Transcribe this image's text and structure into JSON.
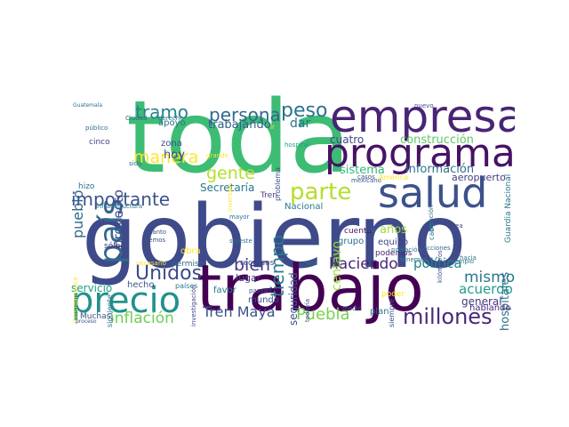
{
  "words": [
    {
      "id": "gobierno",
      "text": "gobierno",
      "color": "#3e4a89"
    },
    {
      "id": "toda",
      "text": "toda",
      "color": "#3dbc74"
    },
    {
      "id": "trabajo",
      "text": "trabajo",
      "color": "#440154"
    },
    {
      "id": "empresa",
      "text": "empresa",
      "color": "#482475"
    },
    {
      "id": "programa",
      "text": "programa",
      "color": "#471365"
    },
    {
      "id": "salud",
      "text": "salud",
      "color": "#3b528b"
    },
    {
      "id": "precio",
      "text": "precio",
      "color": "#21918c"
    },
    {
      "id": "parte",
      "text": "parte",
      "color": "#b5de2b"
    },
    {
      "id": "pais",
      "text": "país",
      "color": "#31688e"
    },
    {
      "id": "millones",
      "text": "millones",
      "color": "#482878"
    },
    {
      "id": "persona",
      "text": "persona",
      "color": "#31688e"
    },
    {
      "id": "peso",
      "text": "peso",
      "color": "#2c728e"
    },
    {
      "id": "tramo",
      "text": "tramo",
      "color": "#26828e"
    },
    {
      "id": "importante",
      "text": "importante",
      "color": "#3b528b"
    },
    {
      "id": "unidos",
      "text": "Unidos",
      "color": "#3e4989"
    },
    {
      "id": "manera",
      "text": "manera",
      "color": "#fde725"
    },
    {
      "id": "gente",
      "text": "gente",
      "color": "#b5de2b"
    },
    {
      "id": "puebla",
      "text": "Puebla",
      "color": "#7ad151"
    },
    {
      "id": "tren-maya",
      "text": "Tren Maya",
      "color": "#3b528b"
    },
    {
      "id": "inflacion",
      "text": "inflación",
      "color": "#6ece58"
    },
    {
      "id": "bien",
      "text": "bien",
      "color": "#443a83"
    },
    {
      "id": "haciendo",
      "text": "haciendo",
      "color": "#482878"
    },
    {
      "id": "mismo",
      "text": "mismo",
      "color": "#2a788e"
    },
    {
      "id": "acuerdo",
      "text": "acuerdo",
      "color": "#1f9e89"
    },
    {
      "id": "politica",
      "text": "política",
      "color": "#25848e"
    },
    {
      "id": "tiempo",
      "text": "tiempo",
      "color": "#2a788e"
    },
    {
      "id": "pueblo",
      "text": "pueblo",
      "color": "#31688e"
    },
    {
      "id": "proyecto",
      "text": "proyecto",
      "color": "#3e4a89"
    },
    {
      "id": "trabajando",
      "text": "trabajando",
      "color": "#355f8d"
    },
    {
      "id": "dar",
      "text": "dar",
      "color": "#2c728e"
    },
    {
      "id": "cuatro",
      "text": "cuatro",
      "color": "#404688"
    },
    {
      "id": "construccion",
      "text": "construcción",
      "color": "#5ec962"
    },
    {
      "id": "sistema",
      "text": "sistema",
      "color": "#35b779"
    },
    {
      "id": "informacion",
      "text": "información",
      "color": "#2d708e"
    },
    {
      "id": "aeropuerto",
      "text": "aeropuerto",
      "color": "#433e85"
    },
    {
      "id": "centavo",
      "text": "centavo",
      "color": "#a0da39"
    },
    {
      "id": "hoy",
      "text": "hoy",
      "color": "#3b528b"
    },
    {
      "id": "secretaria",
      "text": "Secretaría",
      "color": "#2a788e"
    },
    {
      "id": "servicio",
      "text": "servicio",
      "color": "#1fa188"
    },
    {
      "id": "hospitales",
      "text": "hospitales",
      "color": "#2c728e"
    },
    {
      "id": "general",
      "text": "general",
      "color": "#443983"
    },
    {
      "id": "seguridad",
      "text": "seguridad",
      "color": "#3b528b"
    },
    {
      "id": "anos",
      "text": "años",
      "color": "#9fda3a"
    },
    {
      "id": "nacional",
      "text": "Nacional",
      "color": "#2a788e"
    },
    {
      "id": "guardia-nacional",
      "text": "Guardia Nacional",
      "color": "#2a788e"
    },
    {
      "id": "zona",
      "text": "zona",
      "color": "#3b528b"
    },
    {
      "id": "apoyo",
      "text": "apoyo",
      "color": "#2c728e"
    },
    {
      "id": "lugar",
      "text": "lugar",
      "color": "#433e85"
    },
    {
      "id": "grupo",
      "text": "grupo",
      "color": "#2c728e"
    },
    {
      "id": "equipo",
      "text": "equipo",
      "color": "#404688"
    },
    {
      "id": "podemos",
      "text": "podemos",
      "color": "#482475"
    },
    {
      "id": "cuenta",
      "text": "cuenta",
      "color": "#471365"
    },
    {
      "id": "recursos",
      "text": "recursos",
      "color": "#3e4a89"
    },
    {
      "id": "permiso",
      "text": "permiso",
      "color": "#31688e"
    },
    {
      "id": "obra",
      "text": "obra",
      "color": "#fde725"
    },
    {
      "id": "hecho",
      "text": "hecho",
      "color": "#3b528b"
    },
    {
      "id": "favor",
      "text": "favor",
      "color": "#2a788e"
    },
    {
      "id": "mundo",
      "text": "mundo",
      "color": "#3b528b"
    },
    {
      "id": "plan",
      "text": "plan",
      "color": "#2a788e"
    },
    {
      "id": "poder",
      "text": "poder",
      "color": "#fde725"
    },
    {
      "id": "hablando",
      "text": "hablando",
      "color": "#482878"
    },
    {
      "id": "hizo",
      "text": "hizo",
      "color": "#2c728e"
    },
    {
      "id": "tren",
      "text": "Tren",
      "color": "#443a83"
    },
    {
      "id": "muchas",
      "text": "Muchas",
      "color": "#3b528b"
    },
    {
      "id": "siguiente",
      "text": "siguiente",
      "color": "#2c728e"
    },
    {
      "id": "solo",
      "text": "sólo",
      "color": "#482878"
    },
    {
      "id": "cinco",
      "text": "cinco",
      "color": "#433e85"
    },
    {
      "id": "publico",
      "text": "público",
      "color": "#2c728e"
    },
    {
      "id": "ciudad",
      "text": "Ciudad",
      "color": "#31688e"
    },
    {
      "id": "derecho",
      "text": "derecho",
      "color": "#2c728e"
    },
    {
      "id": "sido",
      "text": "sido",
      "color": "#2c728e"
    },
    {
      "id": "grande",
      "text": "grande",
      "color": "#fde725"
    },
    {
      "id": "inversion",
      "text": "inversión",
      "color": "#fde725"
    },
    {
      "id": "problema",
      "text": "problema",
      "color": "#3b528b"
    },
    {
      "id": "hospital",
      "text": "hospital",
      "color": "#1fa188"
    },
    {
      "id": "mexicano",
      "text": "mexicano",
      "color": "#3b528b"
    },
    {
      "id": "casos",
      "text": "casos",
      "color": "#3b528b"
    },
    {
      "id": "america",
      "text": "América",
      "color": "#fde725"
    },
    {
      "id": "atencion",
      "text": "atención",
      "color": "#2c728e"
    },
    {
      "id": "ejemplo",
      "text": "ejemplo",
      "color": "#2a788e"
    },
    {
      "id": "area",
      "text": "área",
      "color": "#404688"
    },
    {
      "id": "acciones",
      "text": "acciones",
      "color": "#31688e"
    },
    {
      "id": "kilometros",
      "text": "kilómetros",
      "color": "#3b528b"
    },
    {
      "id": "poblacion",
      "text": "población",
      "color": "#2a788e"
    },
    {
      "id": "tenemos",
      "text": "tenemos",
      "color": "#2a788e"
    },
    {
      "id": "cabo",
      "text": "cabo",
      "color": "#2c728e"
    },
    {
      "id": "vez",
      "text": "vez",
      "color": "#2c728e"
    },
    {
      "id": "hacia",
      "text": "hacia",
      "color": "#2a788e"
    },
    {
      "id": "siempre",
      "text": "siempre",
      "color": "#3b528b"
    },
    {
      "id": "medio",
      "text": "medio",
      "color": "#3b528b"
    },
    {
      "id": "todavia",
      "text": "todavía",
      "color": "#3b528b"
    },
    {
      "id": "pasado",
      "text": "pasado",
      "color": "#3b528b"
    },
    {
      "id": "via",
      "text": "vía",
      "color": "#2c728e"
    },
    {
      "id": "paises",
      "text": "países",
      "color": "#2a788e"
    },
    {
      "id": "necesario",
      "text": "necesario",
      "color": "#fde725"
    },
    {
      "id": "investigacion",
      "text": "investigación",
      "color": "#404688"
    },
    {
      "id": "cuanto",
      "text": "cuanto",
      "color": "#3b528b"
    },
    {
      "id": "vemos",
      "text": "vemos",
      "color": "#3b528b"
    },
    {
      "id": "mayor",
      "text": "mayor",
      "color": "#2c728e"
    },
    {
      "id": "sureste",
      "text": "sureste",
      "color": "#2c728e"
    },
    {
      "id": "centroamerica",
      "text": "Centroamérica",
      "color": "#fde725"
    },
    {
      "id": "infraestructura",
      "text": "infraestructura",
      "color": "#2c728e"
    },
    {
      "id": "guatemala",
      "text": "Guatemala",
      "color": "#2c728e"
    },
    {
      "id": "nuevo",
      "text": "nuevo",
      "color": "#3b528b"
    },
    {
      "id": "proceso",
      "text": "proceso",
      "color": "#3b528b"
    },
    {
      "id": "ir",
      "text": "ir",
      "color": "#fde725"
    }
  ]
}
